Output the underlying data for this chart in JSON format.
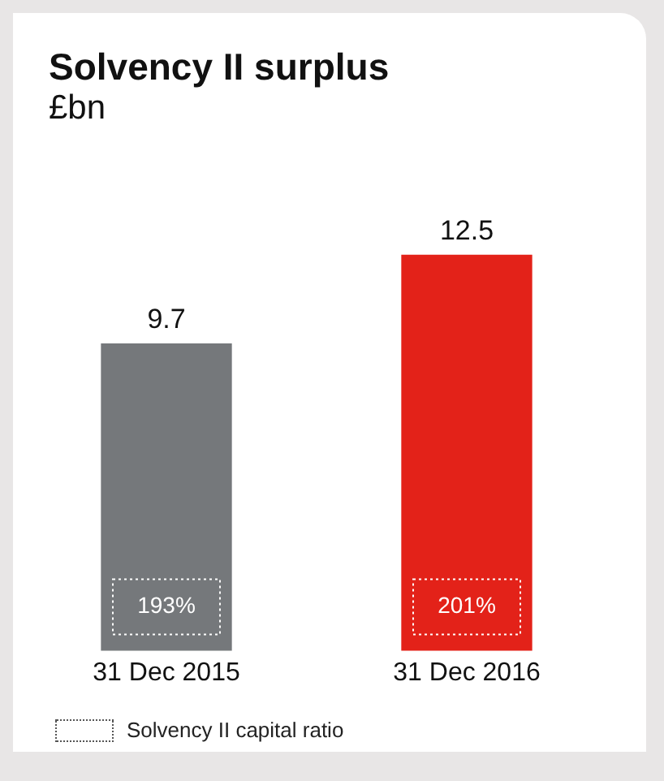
{
  "chart_data": {
    "type": "bar",
    "title": "Solvency II surplus",
    "subtitle": "£bn",
    "categories": [
      "31 Dec 2015",
      "31 Dec 2016"
    ],
    "values": [
      9.7,
      12.5
    ],
    "colors": [
      "#75787b",
      "#e32219"
    ],
    "data_labels": true,
    "grid": false,
    "legend": false,
    "annotations": [
      "193%",
      "201%",
      "Solvency II capital ratio"
    ]
  }
}
